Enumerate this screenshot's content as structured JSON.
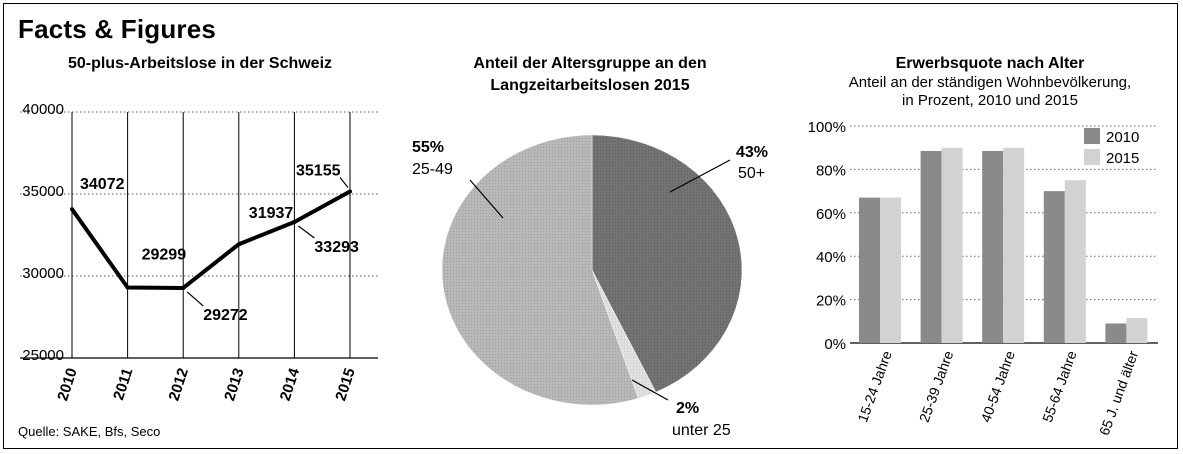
{
  "header": {
    "title": "Facts & Figures"
  },
  "footer": {
    "source": "Quelle: SAKE, Bfs, Seco"
  },
  "chart_data": [
    {
      "type": "line",
      "title": "50-plus-Arbeitslose in der Schweiz",
      "x": [
        "2010",
        "2011",
        "2012",
        "2013",
        "2014",
        "2015"
      ],
      "series": [
        {
          "values": [
            34072,
            29299,
            29272,
            31937,
            33293,
            35155
          ]
        }
      ],
      "data_labels": [
        "34072",
        "29299",
        "29272",
        "31937",
        "33293",
        "35155"
      ],
      "y_ticks": [
        "25000",
        "30000",
        "35000",
        "40000"
      ],
      "ylim": [
        25000,
        40000
      ],
      "grid": "horizontal dotted, vertical solid"
    },
    {
      "type": "pie",
      "title_lines": [
        "Anteil der Altersgruppe an den",
        "Langzeitarbeitslosen 2015"
      ],
      "slices": [
        {
          "label": "50+",
          "percent_label": "43%",
          "value": 43,
          "color": "#6e6e6e"
        },
        {
          "label": "unter 25",
          "percent_label": "2%",
          "value": 2,
          "color": "#dcdcdc"
        },
        {
          "label": "25-49",
          "percent_label": "55%",
          "value": 55,
          "color": "#b4b4b4"
        }
      ]
    },
    {
      "type": "bar",
      "title": "Erwerbsquote nach Alter",
      "subtitle_lines": [
        "Anteil an der ständigen Wohnbevölkerung,",
        "in Prozent, 2010 und 2015"
      ],
      "categories": [
        "15-24 Jahre",
        "25-39 Jahre",
        "40-54 Jahre",
        "55-64 Jahre",
        "65 J. und älter"
      ],
      "series": [
        {
          "name": "2010",
          "values": [
            67,
            88.5,
            88.5,
            70,
            9
          ],
          "color": "#8a8a8a"
        },
        {
          "name": "2015",
          "values": [
            67,
            90,
            90,
            75,
            11.5
          ],
          "color": "#d2d2d2"
        }
      ],
      "y_ticks": [
        "0%",
        "20%",
        "40%",
        "60%",
        "80%",
        "100%"
      ],
      "ylim": [
        0,
        100
      ],
      "legend": "top-right",
      "grid": "horizontal dotted"
    }
  ]
}
